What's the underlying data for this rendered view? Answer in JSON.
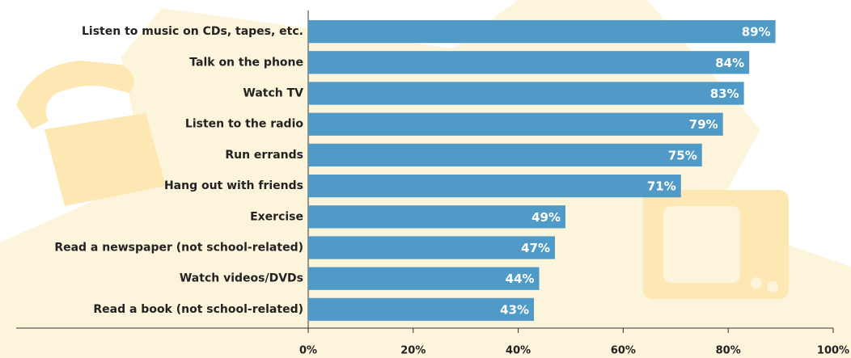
{
  "chart_data": {
    "type": "bar",
    "orientation": "horizontal",
    "categories": [
      "Listen to music on CDs, tapes, etc.",
      "Talk on the phone",
      "Watch TV",
      "Listen to the radio",
      "Run errands",
      "Hang out with friends",
      "Exercise",
      "Read a newspaper (not school-related)",
      "Watch videos/DVDs",
      "Read a book (not school-related)"
    ],
    "values": [
      89,
      84,
      83,
      79,
      75,
      71,
      49,
      47,
      44,
      43
    ],
    "value_labels": [
      "89%",
      "84%",
      "83%",
      "79%",
      "75%",
      "71%",
      "49%",
      "47%",
      "44%",
      "43%"
    ],
    "color": "#4f9ac7",
    "xlim": [
      0,
      100
    ],
    "xticks": [
      {
        "value": 0,
        "label": "0%"
      },
      {
        "value": 20,
        "label": "20%"
      },
      {
        "value": 40,
        "label": "40%"
      },
      {
        "value": 60,
        "label": "60%"
      },
      {
        "value": 80,
        "label": "80%"
      },
      {
        "value": 100,
        "label": "100%"
      }
    ],
    "grid": false
  }
}
